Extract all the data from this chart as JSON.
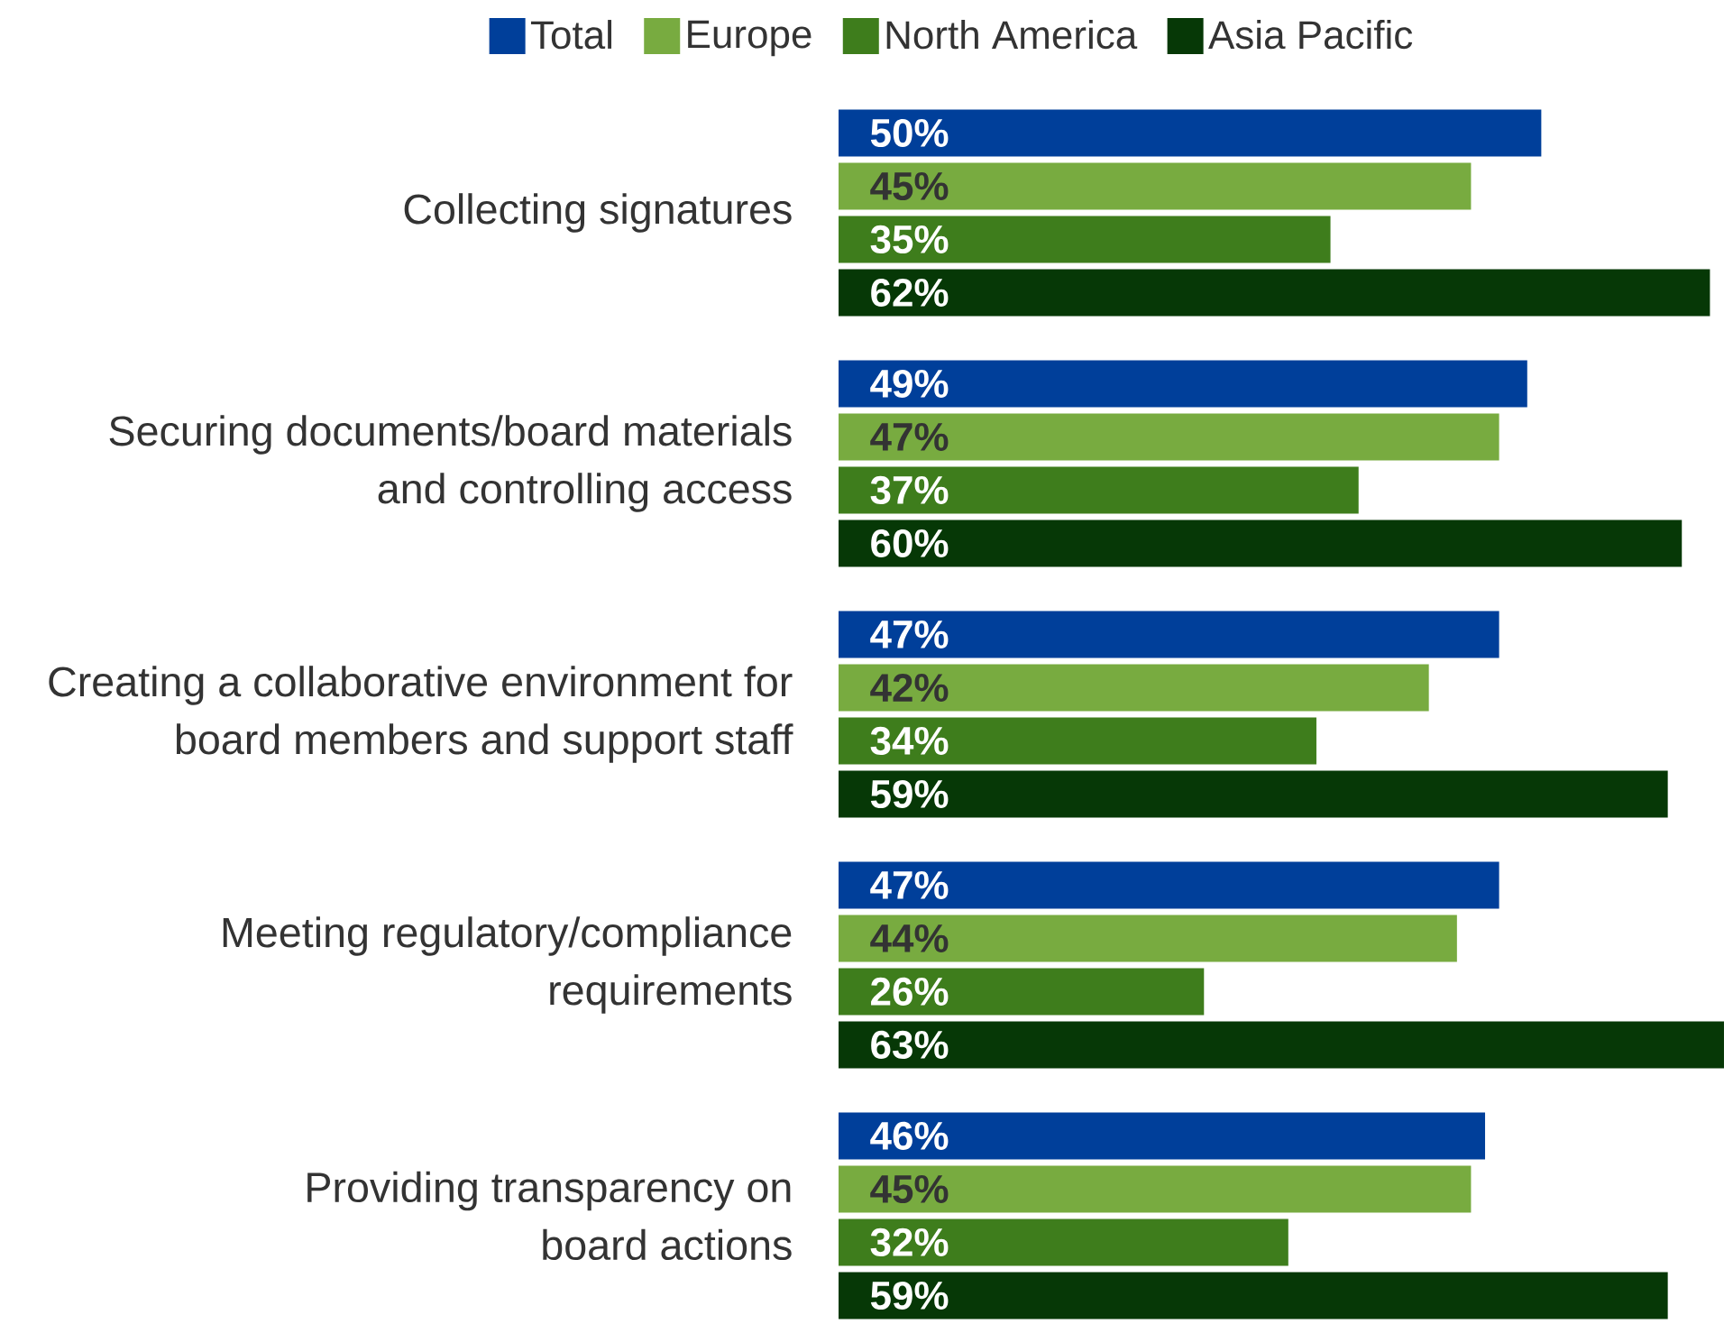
{
  "chart_data": {
    "type": "bar",
    "orientation": "horizontal",
    "legend": "top",
    "categories": [
      "Collecting signatures",
      "Securing documents/board materials\nand controlling access",
      "Creating a collaborative environment for\nboard members and support staff",
      "Meeting regulatory/compliance\nrequirements",
      "Providing transparency on\nboard actions"
    ],
    "series": [
      {
        "name": "Total",
        "color": "#003f9a",
        "values": [
          50,
          49,
          47,
          47,
          46
        ],
        "value_labels": [
          "50%",
          "49%",
          "47%",
          "47%",
          "46%"
        ]
      },
      {
        "name": "Europe",
        "color": "#78ab40",
        "values": [
          45,
          47,
          42,
          44,
          45
        ],
        "value_labels": [
          "45%",
          "47%",
          "42%",
          "44%",
          "45%"
        ]
      },
      {
        "name": "North America",
        "color": "#3e7d1c",
        "values": [
          35,
          37,
          34,
          26,
          32
        ],
        "value_labels": [
          "35%",
          "37%",
          "34%",
          "26%",
          "32%"
        ]
      },
      {
        "name": "Asia Pacific",
        "color": "#063806",
        "values": [
          62,
          60,
          59,
          63,
          59
        ],
        "value_labels": [
          "62%",
          "60%",
          "59%",
          "63%",
          "59%"
        ]
      }
    ]
  }
}
